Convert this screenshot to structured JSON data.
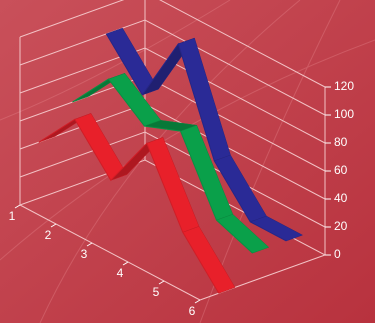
{
  "chart_data": {
    "type": "ribbon3d",
    "categories": [
      "1",
      "2",
      "3",
      "4",
      "5",
      "6"
    ],
    "series": [
      {
        "color": "#e8202a",
        "values": [
          40,
          70,
          40,
          80,
          30,
          0
        ]
      },
      {
        "color": "#0aa04a",
        "values": [
          60,
          90,
          70,
          80,
          30,
          20
        ]
      },
      {
        "color": "#2a2a96",
        "values": [
          100,
          70,
          120,
          50,
          20,
          20
        ]
      }
    ],
    "ylim": [
      0,
      120
    ],
    "yticks": [
      0,
      20,
      40,
      60,
      80,
      100,
      120
    ],
    "grid": true
  }
}
